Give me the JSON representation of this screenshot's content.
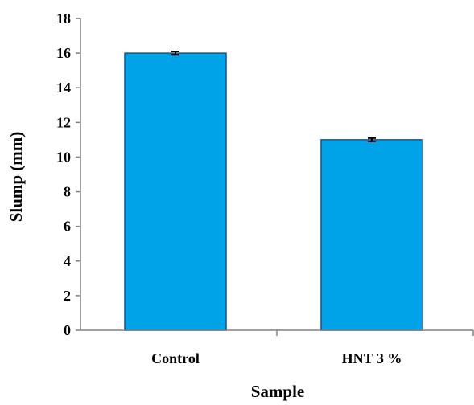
{
  "chart_data": {
    "type": "bar",
    "categories": [
      "Control",
      "HNT 3 %"
    ],
    "values": [
      16,
      11
    ],
    "errors": [
      0.05,
      0.05
    ],
    "xlabel": "Sample",
    "ylabel": "Slump (mm)",
    "ylim": [
      0,
      18
    ],
    "yticks": [
      "0",
      "2",
      "4",
      "6",
      "8",
      "10",
      "12",
      "14",
      "16",
      "18"
    ],
    "grid": false,
    "legend": "none",
    "colors": {
      "bar_fill": "#00a2e8",
      "bar_stroke": "#1f4f8a",
      "axis": "#808080",
      "error_bar": "#000000"
    }
  }
}
